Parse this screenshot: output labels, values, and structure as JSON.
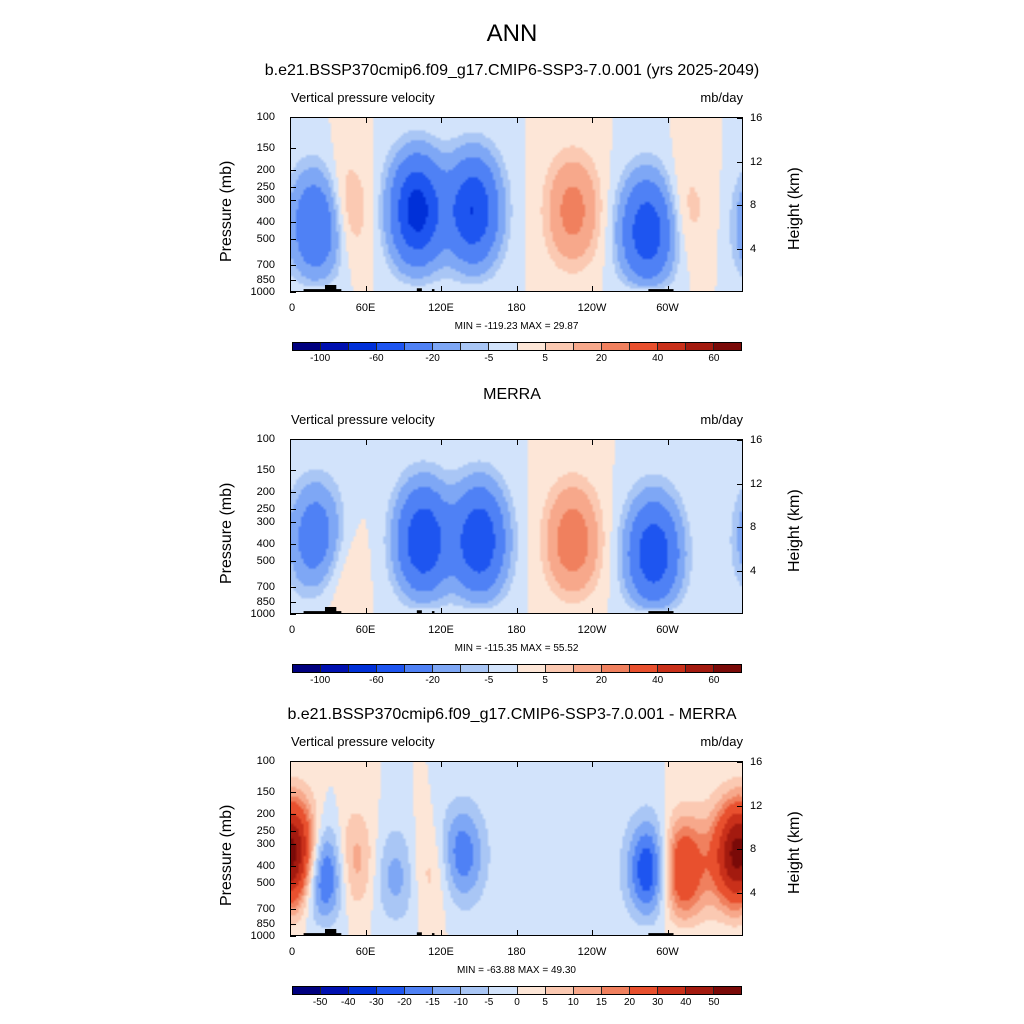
{
  "figure_title": "ANN",
  "panels": [
    {
      "title": "b.e21.BSSP370cmip6.f09_g17.CMIP6-SSP3-7.0.001 (yrs 2025-2049)",
      "left_header": "Vertical pressure velocity",
      "right_header": "mb/day",
      "stats": "MIN = -119.23  MAX =  29.87",
      "colorbar_labels": [
        "-100",
        "-60",
        "-20",
        "-5",
        "5",
        "20",
        "40",
        "60"
      ]
    },
    {
      "title": "MERRA",
      "left_header": "Vertical pressure velocity",
      "right_header": "mb/day",
      "stats": "MIN = -115.35  MAX =  55.52",
      "colorbar_labels": [
        "-100",
        "-60",
        "-20",
        "-5",
        "5",
        "20",
        "40",
        "60"
      ]
    },
    {
      "title": "b.e21.BSSP370cmip6.f09_g17.CMIP6-SSP3-7.0.001 - MERRA",
      "left_header": "Vertical pressure velocity",
      "right_header": "mb/day",
      "stats": "MIN = -63.88  MAX =  49.30",
      "colorbar_labels": [
        "-50",
        "-40",
        "-30",
        "-20",
        "-15",
        "-10",
        "-5",
        "0",
        "5",
        "10",
        "15",
        "20",
        "30",
        "40",
        "50"
      ]
    }
  ],
  "axes": {
    "ylabel": "Pressure (mb)",
    "y2label": "Height (km)",
    "pressure_ticks": [
      "100",
      "150",
      "200",
      "250",
      "300",
      "400",
      "500",
      "700",
      "850",
      "1000"
    ],
    "height_ticks": [
      "4",
      "8",
      "12",
      "16"
    ],
    "x_ticks": [
      "0",
      "60E",
      "120E",
      "180",
      "120W",
      "60W"
    ]
  },
  "palette": [
    "#00007f",
    "#0010b0",
    "#0030d8",
    "#1e55f0",
    "#4f81f5",
    "#7ea7f5",
    "#a9c6f5",
    "#d2e3fb",
    "#fde6d7",
    "#fbc9b2",
    "#f7a88b",
    "#f0805e",
    "#e8502e",
    "#c9301a",
    "#a31a0f",
    "#7a0a08"
  ],
  "chart_data": [
    {
      "type": "heatmap",
      "title": "b.e21.BSSP370cmip6.f09_g17.CMIP6-SSP3-7.0.001 (yrs 2025-2049)",
      "xlabel": "",
      "ylabel": "Pressure (mb)",
      "y2label": "Height (km)",
      "field": "Vertical pressure velocity",
      "units": "mb/day",
      "x_ticks": [
        "0",
        "60E",
        "120E",
        "180",
        "120W",
        "60W"
      ],
      "y_ticks": [
        100,
        150,
        200,
        250,
        300,
        400,
        500,
        700,
        850,
        1000
      ],
      "levels": [
        -120,
        -100,
        -80,
        -60,
        -40,
        -20,
        -10,
        -5,
        0,
        5,
        10,
        20,
        30,
        40,
        50,
        60,
        70
      ],
      "min": -119.23,
      "max": 29.87,
      "features": [
        {
          "lon": 20,
          "p": 450,
          "value": -45
        },
        {
          "lon": 40,
          "p": 350,
          "value": 15
        },
        {
          "lon": 100,
          "p": 350,
          "value": -70
        },
        {
          "lon": 145,
          "p": 350,
          "value": -60
        },
        {
          "lon": 225,
          "p": 350,
          "value": 25
        },
        {
          "lon": 285,
          "p": 500,
          "value": -60
        },
        {
          "lon": 315,
          "p": 350,
          "value": 8
        }
      ]
    },
    {
      "type": "heatmap",
      "title": "MERRA",
      "xlabel": "",
      "ylabel": "Pressure (mb)",
      "y2label": "Height (km)",
      "field": "Vertical pressure velocity",
      "units": "mb/day",
      "x_ticks": [
        "0",
        "60E",
        "120E",
        "180",
        "120W",
        "60W"
      ],
      "y_ticks": [
        100,
        150,
        200,
        250,
        300,
        400,
        500,
        700,
        850,
        1000
      ],
      "levels": [
        -120,
        -100,
        -80,
        -60,
        -40,
        -20,
        -10,
        -5,
        0,
        5,
        10,
        20,
        30,
        40,
        50,
        60,
        70
      ],
      "min": -115.35,
      "max": 55.52,
      "features": [
        {
          "lon": 20,
          "p": 400,
          "value": -40
        },
        {
          "lon": 30,
          "p": 550,
          "value": 15
        },
        {
          "lon": 105,
          "p": 400,
          "value": -60
        },
        {
          "lon": 150,
          "p": 400,
          "value": -60
        },
        {
          "lon": 225,
          "p": 400,
          "value": 30
        },
        {
          "lon": 290,
          "p": 500,
          "value": -60
        }
      ]
    },
    {
      "type": "heatmap",
      "title": "b.e21.BSSP370cmip6.f09_g17.CMIP6-SSP3-7.0.001 - MERRA",
      "xlabel": "",
      "ylabel": "Pressure (mb)",
      "y2label": "Height (km)",
      "field": "Vertical pressure velocity",
      "units": "mb/day",
      "x_ticks": [
        "0",
        "60E",
        "120E",
        "180",
        "120W",
        "60W"
      ],
      "y_ticks": [
        100,
        150,
        200,
        250,
        300,
        400,
        500,
        700,
        850,
        1000
      ],
      "levels": [
        -55,
        -50,
        -40,
        -30,
        -20,
        -15,
        -10,
        -5,
        0,
        5,
        10,
        15,
        20,
        30,
        40,
        50,
        55
      ],
      "min": -63.88,
      "max": 49.3,
      "features": [
        {
          "lon": 5,
          "p": 350,
          "value": 35
        },
        {
          "lon": 25,
          "p": 450,
          "value": -40
        },
        {
          "lon": 45,
          "p": 400,
          "value": 20
        },
        {
          "lon": 85,
          "p": 500,
          "value": -15
        },
        {
          "lon": 110,
          "p": 450,
          "value": 12
        },
        {
          "lon": 135,
          "p": 350,
          "value": -20
        },
        {
          "lon": 290,
          "p": 450,
          "value": -35
        },
        {
          "lon": 310,
          "p": 450,
          "value": 40
        },
        {
          "lon": 355,
          "p": 350,
          "value": 30
        }
      ]
    }
  ]
}
